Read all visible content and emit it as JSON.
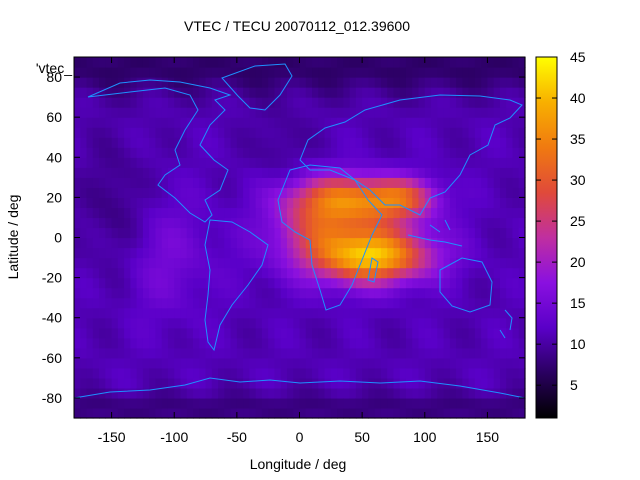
{
  "chart_data": {
    "type": "heatmap",
    "title": "VTEC / TECU 20070112_012.39600",
    "xlabel": "Longitude / deg",
    "ylabel": "Latitude / deg",
    "legend_key_label": "'vtec_",
    "xlim": [
      -180,
      180
    ],
    "ylim": [
      -90,
      90
    ],
    "x_ticks": [
      -150,
      -100,
      -50,
      0,
      50,
      100,
      150
    ],
    "y_ticks": [
      -80,
      -60,
      -40,
      -20,
      0,
      20,
      40,
      60,
      80
    ],
    "colorbar": {
      "min": 1,
      "max": 45,
      "ticks": [
        5,
        10,
        15,
        20,
        25,
        30,
        35,
        40,
        45
      ],
      "stops": [
        "#000000",
        "#2a0060",
        "#5a00c8",
        "#8a10e0",
        "#c02fa0",
        "#e04a3a",
        "#f07a10",
        "#f8b000",
        "#ffff00"
      ]
    },
    "hotspots": [
      {
        "lon": 30,
        "lat": 20,
        "value": 28,
        "sx": 42,
        "sy": 12
      },
      {
        "lon": 80,
        "lat": 20,
        "value": 27,
        "sx": 30,
        "sy": 10
      },
      {
        "lon": 60,
        "lat": -10,
        "value": 32,
        "sx": 45,
        "sy": 12
      },
      {
        "lon": 40,
        "lat": 0,
        "value": 25,
        "sx": 55,
        "sy": 20
      },
      {
        "lon": 10,
        "lat": 5,
        "value": 16,
        "sx": 28,
        "sy": 14
      }
    ]
  }
}
